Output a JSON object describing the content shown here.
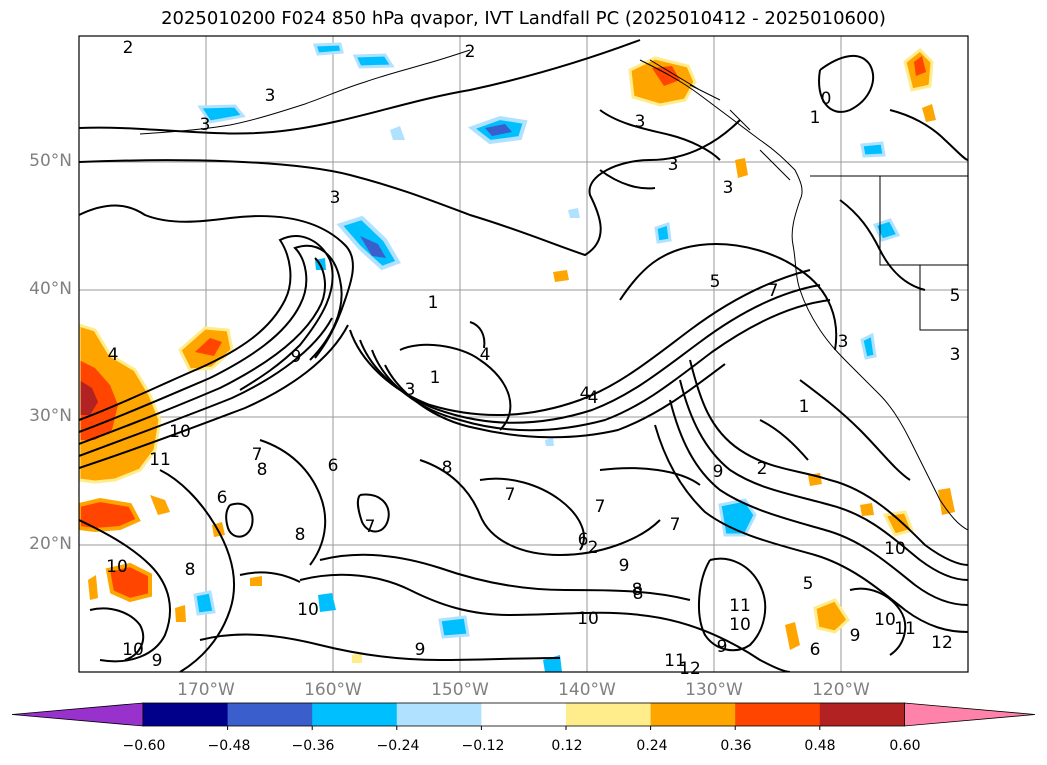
{
  "title": "2025010200 F024 850 hPa qvapor, IVT Landfall PC (2025010412 - 2025010600)",
  "lat_labels": [
    "50°N",
    "40°N",
    "30°N",
    "20°N"
  ],
  "lon_labels": [
    "170°W",
    "160°W",
    "150°W",
    "140°W",
    "130°W",
    "120°W"
  ],
  "colorbar": {
    "colors": [
      "#9932cc",
      "#00008b",
      "#3a5fcd",
      "#00bfff",
      "#b0e2ff",
      "#ffffff",
      "#ffec8b",
      "#ffa500",
      "#ff4500",
      "#b22222",
      "#ff82ab"
    ],
    "tick_labels": [
      "−0.60",
      "−0.48",
      "−0.36",
      "−0.24",
      "−0.12",
      "0.12",
      "0.24",
      "0.36",
      "0.48",
      "0.60"
    ]
  },
  "contour_labels": [
    "2",
    "3",
    "3",
    "3",
    "3",
    "3",
    "3",
    "2",
    "4",
    "3",
    "1",
    "4",
    "9",
    "10",
    "11",
    "7",
    "6",
    "6",
    "8",
    "7",
    "8",
    "8",
    "7",
    "7",
    "10",
    "8",
    "10",
    "10",
    "9",
    "9",
    "8",
    "10",
    "11",
    "10",
    "12",
    "11",
    "12",
    "9",
    "11",
    "10",
    "9",
    "6",
    "5",
    "7",
    "3",
    "1",
    "2",
    "4",
    "5",
    "3",
    "0",
    "1",
    "1",
    "2",
    "7",
    "8",
    "6",
    "9",
    "9",
    "10",
    "4",
    "5"
  ]
}
